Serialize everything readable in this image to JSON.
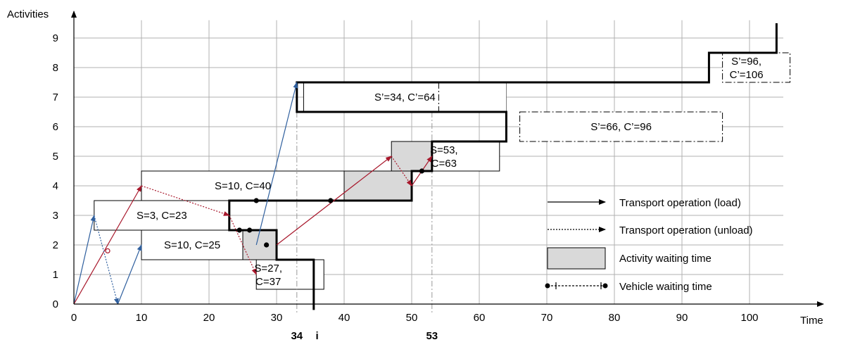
{
  "chart_data": {
    "type": "gantt",
    "xlabel": "Time",
    "ylabel": "Activities",
    "xlim": [
      0,
      105
    ],
    "ylim": [
      0,
      9.6
    ],
    "xticks": [
      0,
      10,
      20,
      30,
      40,
      50,
      60,
      70,
      80,
      90,
      100
    ],
    "yticks": [
      0,
      1,
      2,
      3,
      4,
      5,
      6,
      7,
      8,
      9
    ],
    "grid": true,
    "activities": [
      {
        "id": 1,
        "start": 3,
        "end": 23,
        "level": 3,
        "label": "S=3, C=23"
      },
      {
        "id": 2,
        "start": 10,
        "end": 25,
        "level": 2,
        "label": "S=10, C=25"
      },
      {
        "id": 3,
        "start": 10,
        "end": 40,
        "level": 4,
        "label": "S=10, C=40"
      },
      {
        "id": 4,
        "start": 27,
        "end": 37,
        "level": 1,
        "label_lines": [
          "S=27,",
          "C=37"
        ]
      },
      {
        "id": 5,
        "start": 53,
        "end": 63,
        "level": 5,
        "label_lines": [
          "S=53,",
          "C=63"
        ]
      },
      {
        "id": 6,
        "start": 66,
        "end": 96,
        "level": 6,
        "label": "S’=66, C’=96",
        "dashed": true
      },
      {
        "id": 7,
        "start": 34,
        "end": 64,
        "level": 7,
        "label": "S’=34, C’=64",
        "partly_dashed": true
      },
      {
        "id": 8,
        "start": 96,
        "end": 106,
        "level": 8,
        "label_lines": [
          "S’=96,",
          "C’=106"
        ],
        "dashed": true
      }
    ],
    "waiting_boxes": [
      {
        "start": 25,
        "end": 30,
        "level": 2
      },
      {
        "start": 40,
        "end": 50,
        "level": 4
      },
      {
        "start": 47,
        "end": 53,
        "level": 5
      }
    ],
    "critical_path": [
      [
        35.5,
        -0.2
      ],
      [
        35.5,
        1.5
      ],
      [
        30,
        1.5
      ],
      [
        30,
        2.5
      ],
      [
        23,
        2.5
      ],
      [
        23,
        3.5
      ],
      [
        40,
        3.5
      ],
      [
        50,
        3.5
      ],
      [
        50,
        4.5
      ],
      [
        53,
        4.5
      ],
      [
        53,
        5.5
      ],
      [
        64,
        5.5
      ],
      [
        64,
        6.5
      ],
      [
        33,
        6.5
      ],
      [
        33,
        7.5
      ],
      [
        94,
        7.5
      ],
      [
        94,
        8.5
      ],
      [
        104,
        8.5
      ],
      [
        104,
        9.5
      ]
    ],
    "transport_load": [
      {
        "from": [
          0,
          0
        ],
        "to": [
          3,
          3
        ],
        "color": "blue"
      },
      {
        "from": [
          6.5,
          0
        ],
        "to": [
          10,
          2
        ],
        "color": "blue"
      },
      {
        "from": [
          27,
          2
        ],
        "to": [
          33,
          7.5
        ],
        "color": "blue"
      },
      {
        "from": [
          0,
          0
        ],
        "to": [
          10,
          4
        ],
        "color": "red"
      },
      {
        "from": [
          30,
          2
        ],
        "to": [
          47,
          5
        ],
        "color": "red"
      },
      {
        "from": [
          50,
          4
        ],
        "to": [
          53,
          5
        ],
        "color": "red"
      }
    ],
    "transport_unload": [
      {
        "from": [
          3,
          3
        ],
        "to": [
          6.5,
          0
        ],
        "color": "blue"
      },
      {
        "from": [
          10,
          4
        ],
        "to": [
          23,
          3
        ],
        "color": "red"
      },
      {
        "from": [
          23,
          3
        ],
        "to": [
          27,
          1
        ],
        "color": "red"
      },
      {
        "from": [
          47,
          5
        ],
        "to": [
          50,
          4
        ],
        "color": "red"
      }
    ],
    "vehicle_wait_markers": [
      [
        27,
        3.5
      ],
      [
        38,
        3.5
      ],
      [
        24.5,
        2.5
      ],
      [
        26,
        2.5
      ],
      [
        51.5,
        4.5
      ],
      [
        5,
        1.8
      ],
      [
        28.5,
        2
      ]
    ],
    "marked_times": [
      {
        "x": 33,
        "label": "34",
        "bold": true
      },
      {
        "x": 36,
        "label": "i",
        "bold": true
      },
      {
        "x": 53,
        "label": "53",
        "bold": true
      }
    ],
    "legend": {
      "placement": "bottom-right",
      "items": [
        {
          "label": "Transport operation (load)",
          "symbol": "solid-arrow"
        },
        {
          "label": "Transport operation (unload)",
          "symbol": "dotted-arrow"
        },
        {
          "label": "Activity waiting time",
          "symbol": "gray-box"
        },
        {
          "label": "Vehicle waiting time",
          "symbol": "dashed-dot-marker"
        }
      ]
    },
    "colors": {
      "grid": "#b0b0b0",
      "box_fill": "#ffffff",
      "waiting_fill": "#d9d9d9",
      "critical": "#000000",
      "blue": "#2f5f9e",
      "red": "#a8182c"
    }
  }
}
